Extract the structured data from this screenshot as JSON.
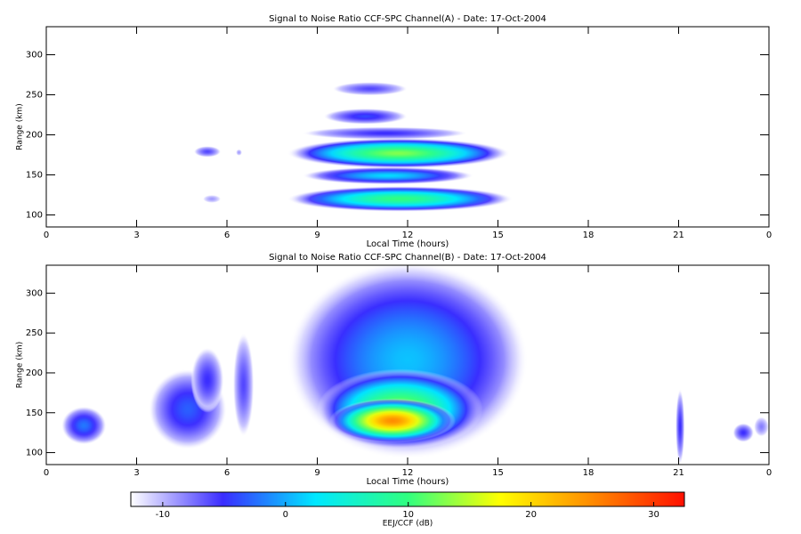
{
  "chart_data": [
    {
      "type": "heatmap",
      "title": "Signal to Noise Ratio CCF-SPC Channel(A) - Date: 17-Oct-2004",
      "xlabel": "Local Time (hours)",
      "ylabel": "Range (km)",
      "xlim": [
        0,
        24
      ],
      "xticks": [
        0,
        3,
        6,
        9,
        12,
        15,
        18,
        21,
        {
          "value": 24,
          "label": "0"
        }
      ],
      "ylim": [
        85,
        335
      ],
      "yticks": [
        100,
        150,
        200,
        250,
        300
      ],
      "blobs": [
        {
          "x": [
            9.5,
            12
          ],
          "y": [
            249,
            266
          ],
          "peak": -6
        },
        {
          "x": [
            9.2,
            12
          ],
          "y": [
            213,
            233
          ],
          "peak": -4
        },
        {
          "x": [
            8.5,
            14
          ],
          "y": [
            194,
            210
          ],
          "peak": -5
        },
        {
          "x": [
            8,
            15.4
          ],
          "y": [
            158,
            196
          ],
          "peak": 13
        },
        {
          "x": [
            8.5,
            14.2
          ],
          "y": [
            138,
            160
          ],
          "peak": 2
        },
        {
          "x": [
            8,
            15.5
          ],
          "y": [
            104,
            136
          ],
          "peak": 10
        },
        {
          "x": [
            4.9,
            5.8
          ],
          "y": [
            172,
            186
          ],
          "peak": -6
        },
        {
          "x": [
            6.3,
            6.5
          ],
          "y": [
            174,
            182
          ],
          "peak": -9
        },
        {
          "x": [
            5.2,
            5.8
          ],
          "y": [
            115,
            125
          ],
          "peak": -9
        }
      ]
    },
    {
      "type": "heatmap",
      "title": "Signal to Noise Ratio CCF-SPC Channel(B) - Date: 17-Oct-2004",
      "xlabel": "Local Time (hours)",
      "ylabel": "Range (km)",
      "xlim": [
        0,
        24
      ],
      "xticks": [
        0,
        3,
        6,
        9,
        12,
        15,
        18,
        21,
        {
          "value": 24,
          "label": "0"
        }
      ],
      "ylim": [
        85,
        335
      ],
      "yticks": [
        100,
        150,
        200,
        250,
        300
      ],
      "blobs": [
        {
          "x": [
            8,
            16
          ],
          "y": [
            92,
            340
          ],
          "peak": 1
        },
        {
          "x": [
            9,
            14.5
          ],
          "y": [
            104,
            205
          ],
          "peak": 14
        },
        {
          "x": [
            9.4,
            13.6
          ],
          "y": [
            112,
            168
          ],
          "peak": 25
        },
        {
          "x": [
            0.5,
            2
          ],
          "y": [
            110,
            158
          ],
          "peak": -2
        },
        {
          "x": [
            3.4,
            6
          ],
          "y": [
            104,
            205
          ],
          "peak": -3
        },
        {
          "x": [
            4.8,
            5.9
          ],
          "y": [
            150,
            232
          ],
          "peak": -5
        },
        {
          "x": [
            6.2,
            6.9
          ],
          "y": [
            120,
            250
          ],
          "peak": -6
        },
        {
          "x": [
            20.9,
            21.2
          ],
          "y": [
            85,
            180
          ],
          "peak": -5
        },
        {
          "x": [
            22.8,
            23.5
          ],
          "y": [
            113,
            137
          ],
          "peak": -5
        },
        {
          "x": [
            23.5,
            24
          ],
          "y": [
            120,
            145
          ],
          "peak": -8
        }
      ]
    },
    {
      "type": "colorbar",
      "label": "EEJ/CCF (dB)",
      "clim": [
        -12.6,
        32.5
      ],
      "cticks": [
        -10,
        0,
        10,
        20,
        30
      ],
      "colormap": [
        "#ffffff",
        "#3a2cff",
        "#00e8ff",
        "#30ff80",
        "#ffff00",
        "#ff8a00",
        "#ff1000"
      ]
    }
  ]
}
